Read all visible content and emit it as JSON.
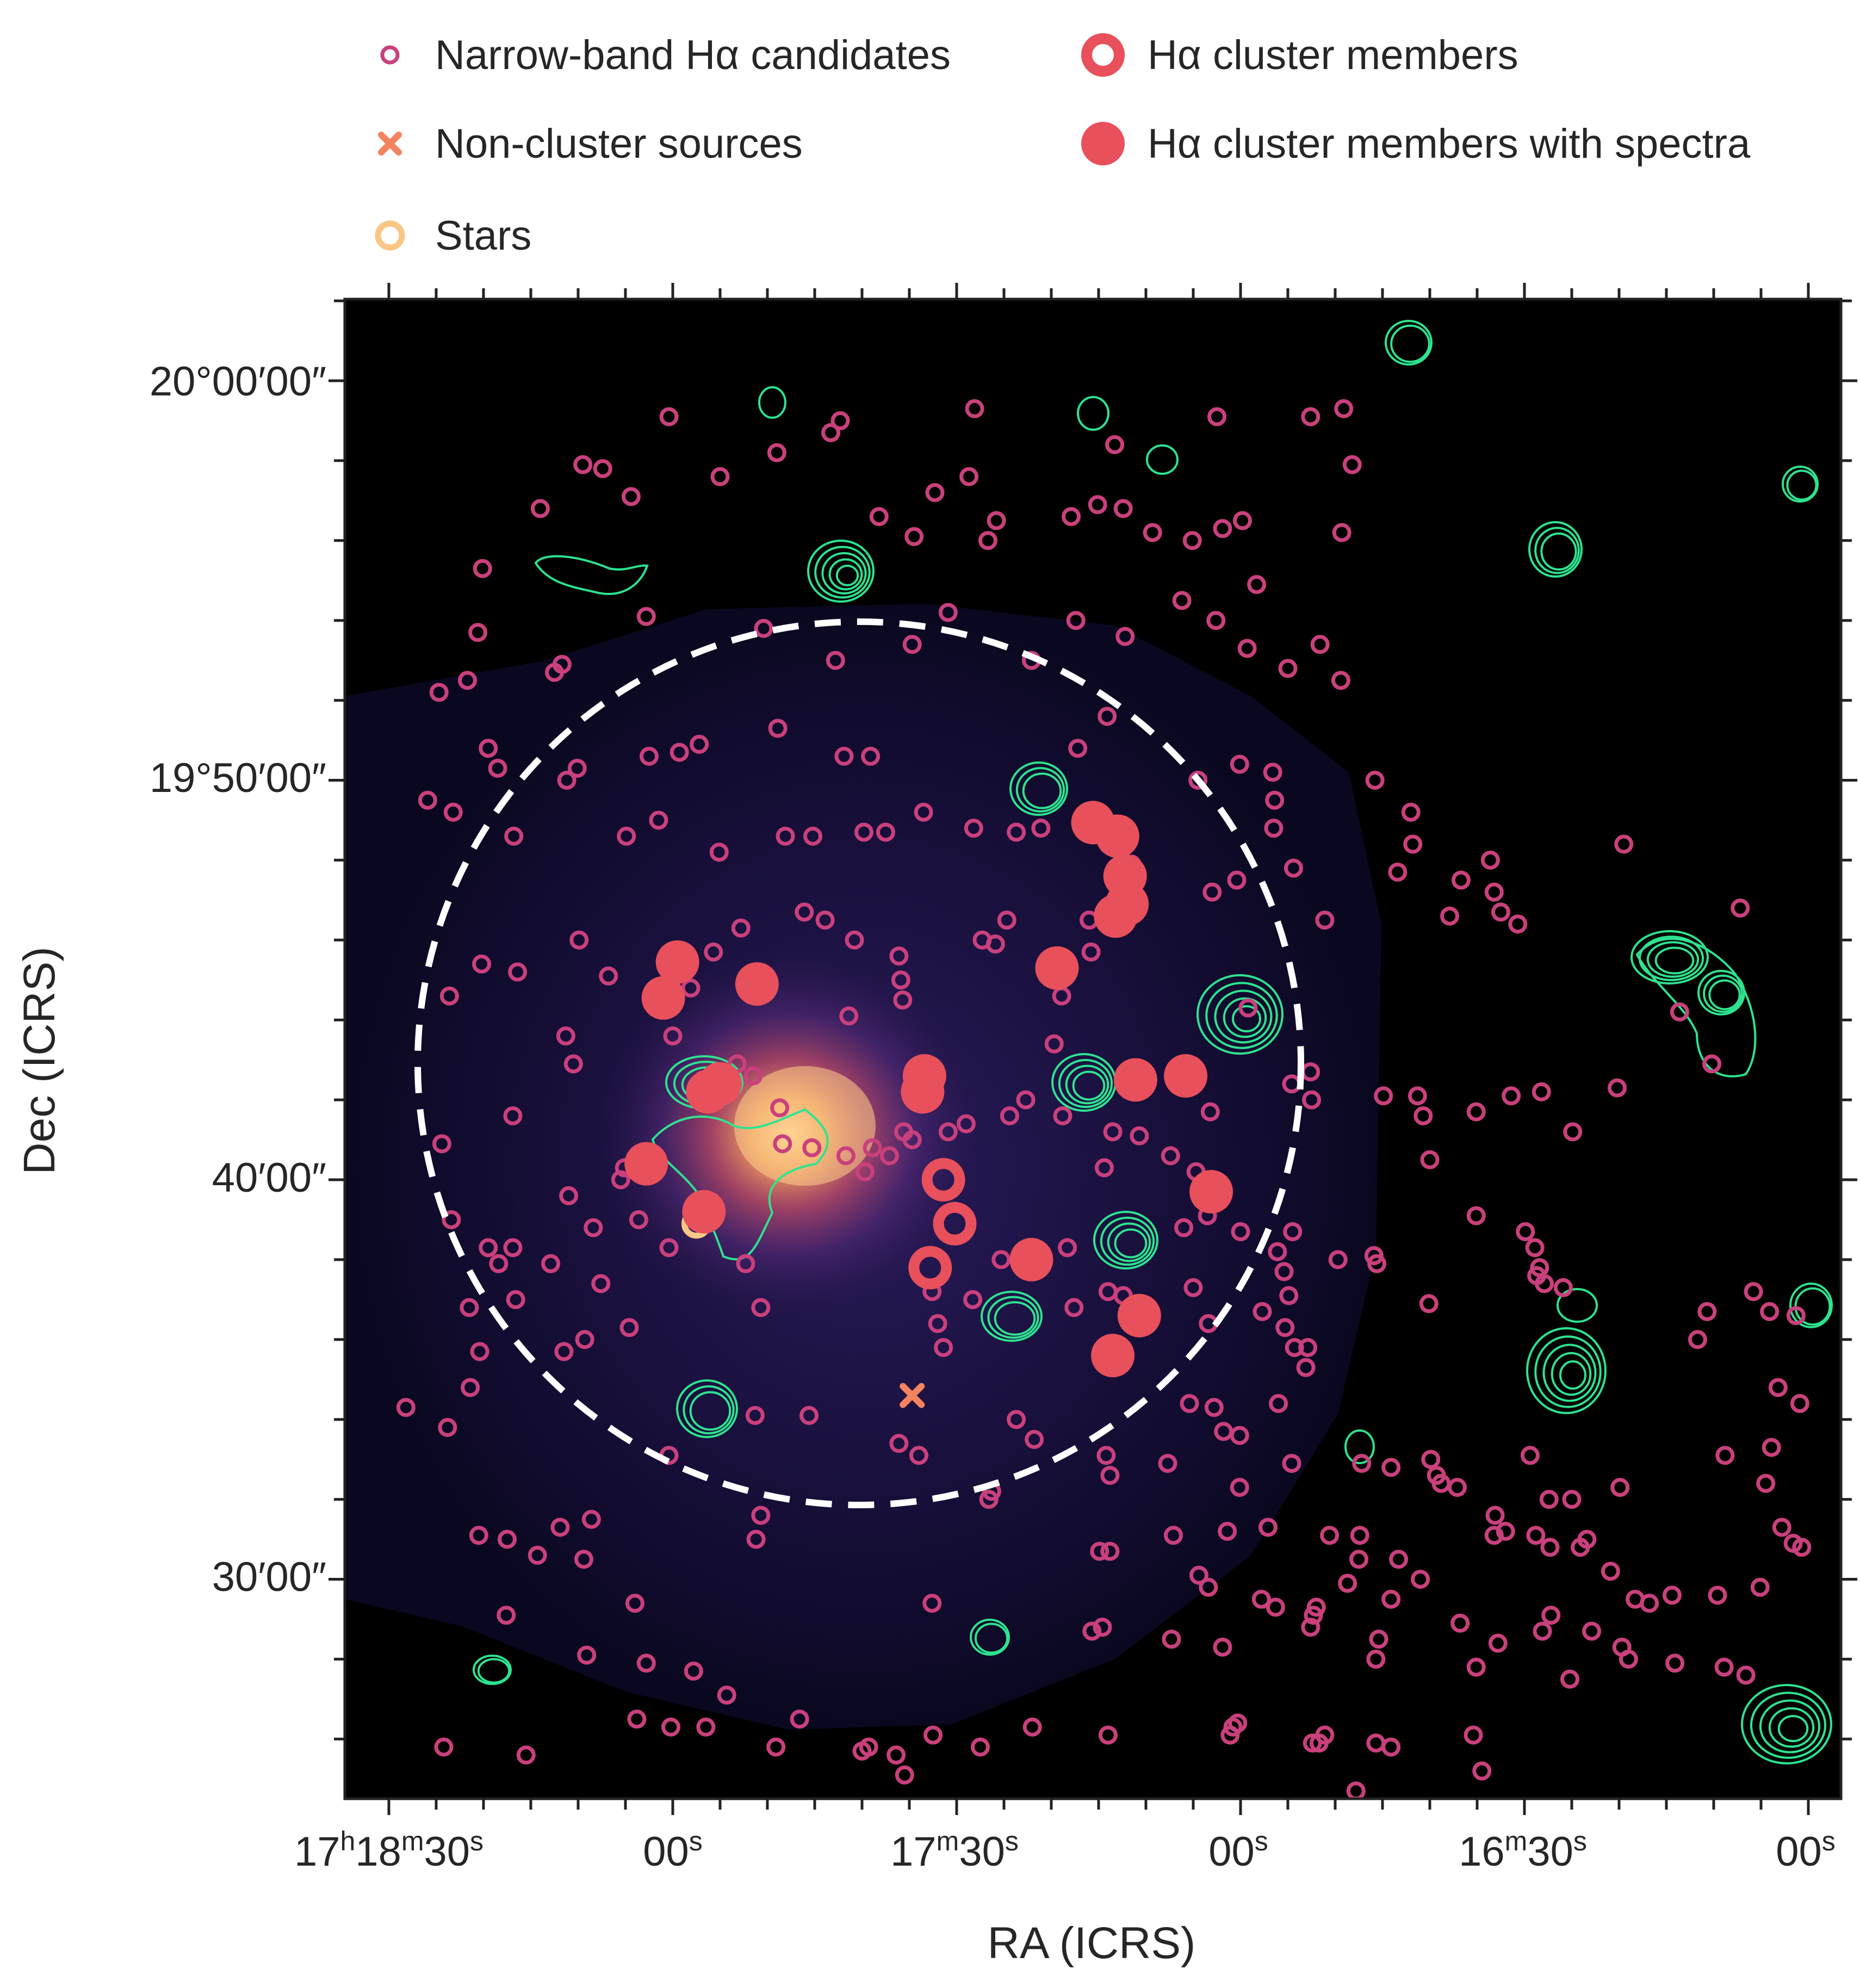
{
  "chart_data": {
    "type": "scatter",
    "xlabel": "RA (ICRS)",
    "ylabel": "Dec (ICRS)",
    "x_unit": "seconds of RA offset from 17h16m00s",
    "y_unit": "arcminutes of Dec offset from +19°",
    "xlim": [
      156,
      -7
    ],
    "ylim": [
      23.7,
      62
    ],
    "x_ticks": [
      {
        "value": 150,
        "label_main": "17",
        "sup1": "h",
        "mid": "18",
        "sup2": "m",
        "end": "30",
        "sup3": "s"
      },
      {
        "value": 120,
        "label_main": "00",
        "sup3": "s"
      },
      {
        "value": 90,
        "label_main": "17",
        "sup2": "m",
        "end": "30",
        "sup3": "s",
        "mid": ""
      },
      {
        "value": 60,
        "label_main": "00",
        "sup3": "s"
      },
      {
        "value": 30,
        "label_main": "16",
        "sup2": "m",
        "end": "30",
        "sup3": "s",
        "mid": ""
      },
      {
        "value": 0,
        "label_main": "00",
        "sup3": "s"
      }
    ],
    "x_tick_labels": [
      "17h18m30s",
      "00s",
      "17m30s",
      "00s",
      "16m30s",
      "00s"
    ],
    "y_tick_labels": [
      {
        "value": 60,
        "label": "20°00′00″"
      },
      {
        "value": 50,
        "label": "19°50′00″"
      },
      {
        "value": 40,
        "label": "40′00″"
      },
      {
        "value": 30,
        "label": "30′00″"
      }
    ],
    "legend": {
      "placement": "above plot",
      "entries": [
        {
          "label": "Narrow-band Hα candidates",
          "marker": "small-open-circle",
          "color": "#c9407c"
        },
        {
          "label": "Hα cluster members",
          "marker": "large-open-circle",
          "color": "#e8505b"
        },
        {
          "label": "Non-cluster sources",
          "marker": "x",
          "color": "#f4845f"
        },
        {
          "label": "Hα cluster members with spectra",
          "marker": "filled-circle",
          "color": "#e8505b"
        },
        {
          "label": "Stars",
          "marker": "open-circle",
          "color": "#f9c784"
        }
      ]
    },
    "region_circle": {
      "center_ra": 90.5,
      "center_dec": 42.9,
      "radius_dec_arcmin": 11.1,
      "style": "white dashed"
    },
    "cluster_members_with_spectra": [
      [
        119.5,
        45.45
      ],
      [
        121.0,
        44.55
      ],
      [
        111.1,
        44.9
      ],
      [
        75.6,
        48.94
      ],
      [
        73.0,
        48.6
      ],
      [
        72.2,
        47.6
      ],
      [
        72.0,
        46.9
      ],
      [
        73.2,
        46.6
      ],
      [
        79.4,
        45.3
      ],
      [
        71.1,
        42.5
      ],
      [
        65.8,
        42.6
      ],
      [
        93.4,
        42.6
      ],
      [
        93.6,
        42.2
      ],
      [
        115.0,
        42.4
      ],
      [
        116.3,
        42.2
      ],
      [
        122.8,
        40.4
      ],
      [
        116.7,
        39.2
      ],
      [
        63.1,
        39.7
      ],
      [
        82.1,
        38.0
      ],
      [
        70.7,
        36.6
      ],
      [
        73.5,
        35.6
      ]
    ],
    "cluster_members_open": [
      [
        91.4,
        40.0
      ],
      [
        90.2,
        38.9
      ],
      [
        92.8,
        37.8
      ]
    ],
    "non_cluster_sources": [
      [
        94.7,
        34.6
      ]
    ],
    "stars": [
      [
        117.5,
        38.9
      ]
    ],
    "halpha_candidates": [
      [
        120.4,
        59.1
      ],
      [
        109.0,
        58.2
      ],
      [
        103.3,
        58.7
      ],
      [
        102.3,
        59.0
      ],
      [
        88.1,
        59.3
      ],
      [
        73.3,
        58.4
      ],
      [
        62.5,
        59.1
      ],
      [
        52.6,
        59.1
      ],
      [
        49.1,
        59.3
      ],
      [
        48.2,
        57.9
      ],
      [
        129.5,
        57.9
      ],
      [
        127.4,
        57.8
      ],
      [
        124.4,
        57.1
      ],
      [
        134.0,
        56.8
      ],
      [
        115.0,
        57.6
      ],
      [
        98.2,
        56.6
      ],
      [
        94.5,
        56.1
      ],
      [
        92.3,
        57.2
      ],
      [
        88.7,
        57.6
      ],
      [
        86.7,
        56.0
      ],
      [
        85.8,
        56.5
      ],
      [
        77.9,
        56.6
      ],
      [
        75.1,
        56.9
      ],
      [
        72.4,
        56.8
      ],
      [
        69.3,
        56.2
      ],
      [
        65.1,
        56.0
      ],
      [
        61.9,
        56.3
      ],
      [
        59.8,
        56.5
      ],
      [
        49.3,
        56.2
      ],
      [
        58.3,
        54.9
      ],
      [
        140.1,
        55.3
      ],
      [
        140.6,
        53.7
      ],
      [
        131.7,
        52.9
      ],
      [
        122.8,
        54.1
      ],
      [
        110.4,
        53.8
      ],
      [
        102.8,
        53.0
      ],
      [
        94.7,
        53.4
      ],
      [
        90.9,
        54.2
      ],
      [
        82.1,
        53.0
      ],
      [
        77.4,
        54.0
      ],
      [
        72.2,
        53.6
      ],
      [
        66.2,
        54.5
      ],
      [
        62.6,
        54.0
      ],
      [
        59.3,
        53.3
      ],
      [
        55.0,
        52.8
      ],
      [
        51.6,
        53.4
      ],
      [
        49.4,
        52.5
      ],
      [
        141.7,
        52.5
      ],
      [
        144.7,
        52.2
      ],
      [
        132.5,
        52.7
      ],
      [
        139.5,
        50.8
      ],
      [
        138.5,
        50.3
      ],
      [
        131.2,
        50.0
      ],
      [
        130.1,
        50.3
      ],
      [
        122.5,
        50.6
      ],
      [
        119.3,
        50.7
      ],
      [
        117.2,
        50.9
      ],
      [
        108.9,
        51.3
      ],
      [
        101.9,
        50.6
      ],
      [
        99.1,
        50.6
      ],
      [
        77.2,
        50.8
      ],
      [
        74.1,
        51.6
      ],
      [
        64.5,
        50.0
      ],
      [
        60.1,
        50.4
      ],
      [
        56.6,
        50.2
      ],
      [
        56.4,
        49.5
      ],
      [
        56.5,
        48.8
      ],
      [
        45.8,
        50.0
      ],
      [
        42.0,
        49.2
      ],
      [
        41.8,
        48.4
      ],
      [
        145.9,
        49.5
      ],
      [
        143.2,
        49.2
      ],
      [
        136.8,
        48.6
      ],
      [
        124.9,
        48.6
      ],
      [
        121.5,
        49.0
      ],
      [
        115.1,
        48.2
      ],
      [
        108.1,
        48.6
      ],
      [
        105.2,
        48.6
      ],
      [
        99.8,
        48.7
      ],
      [
        97.5,
        48.7
      ],
      [
        93.5,
        49.2
      ],
      [
        88.2,
        48.8
      ],
      [
        83.7,
        48.7
      ],
      [
        81.1,
        48.8
      ],
      [
        71.5,
        47.9
      ],
      [
        63.0,
        47.2
      ],
      [
        60.4,
        47.5
      ],
      [
        54.4,
        47.8
      ],
      [
        51.1,
        46.5
      ],
      [
        43.4,
        47.7
      ],
      [
        36.7,
        47.5
      ],
      [
        33.6,
        48.0
      ],
      [
        33.2,
        47.2
      ],
      [
        32.5,
        46.7
      ],
      [
        30.7,
        46.4
      ],
      [
        19.5,
        48.4
      ],
      [
        7.2,
        46.8
      ],
      [
        37.9,
        46.6
      ],
      [
        59.2,
        44.3
      ],
      [
        76.0,
        46.5
      ],
      [
        75.8,
        45.7
      ],
      [
        78.9,
        44.6
      ],
      [
        79.7,
        43.4
      ],
      [
        84.7,
        46.5
      ],
      [
        85.9,
        45.9
      ],
      [
        87.3,
        46.0
      ],
      [
        95.9,
        45.0
      ],
      [
        100.8,
        46.0
      ],
      [
        106.1,
        46.7
      ],
      [
        115.7,
        45.7
      ],
      [
        129.9,
        46.0
      ],
      [
        140.2,
        45.4
      ],
      [
        136.4,
        45.2
      ],
      [
        126.8,
        45.1
      ],
      [
        118.1,
        44.8
      ],
      [
        101.4,
        44.1
      ],
      [
        96.1,
        45.6
      ],
      [
        95.7,
        44.5
      ],
      [
        112.8,
        46.3
      ],
      [
        103.9,
        46.5
      ],
      [
        143.6,
        44.6
      ],
      [
        130.5,
        42.9
      ],
      [
        131.3,
        43.6
      ],
      [
        120.0,
        43.6
      ],
      [
        116.8,
        42.5
      ],
      [
        115.5,
        42.6
      ],
      [
        113.2,
        42.9
      ],
      [
        111.5,
        42.6
      ],
      [
        108.7,
        41.8
      ],
      [
        108.4,
        40.9
      ],
      [
        105.3,
        40.8
      ],
      [
        101.7,
        40.6
      ],
      [
        98.9,
        40.8
      ],
      [
        97.1,
        40.6
      ],
      [
        95.6,
        41.2
      ],
      [
        94.7,
        41.0
      ],
      [
        93.9,
        42.0
      ],
      [
        90.9,
        41.2
      ],
      [
        89.0,
        41.4
      ],
      [
        84.4,
        41.6
      ],
      [
        82.7,
        42.0
      ],
      [
        78.8,
        41.6
      ],
      [
        73.5,
        41.2
      ],
      [
        70.7,
        41.1
      ],
      [
        63.2,
        41.7
      ],
      [
        67.4,
        40.6
      ],
      [
        64.7,
        40.2
      ],
      [
        54.6,
        42.4
      ],
      [
        52.6,
        42.7
      ],
      [
        52.5,
        42.0
      ],
      [
        44.9,
        42.1
      ],
      [
        41.3,
        42.1
      ],
      [
        40.7,
        41.6
      ],
      [
        35.1,
        41.7
      ],
      [
        31.4,
        42.1
      ],
      [
        28.2,
        42.2
      ],
      [
        24.9,
        41.2
      ],
      [
        20.2,
        42.3
      ],
      [
        10.2,
        42.9
      ],
      [
        13.6,
        44.2
      ],
      [
        144.4,
        40.9
      ],
      [
        136.9,
        41.6
      ],
      [
        143.4,
        39.0
      ],
      [
        131.0,
        39.6
      ],
      [
        125.1,
        40.3
      ],
      [
        125.5,
        40.0
      ],
      [
        99.7,
        40.2
      ],
      [
        74.4,
        40.3
      ],
      [
        66.0,
        38.8
      ],
      [
        63.5,
        39.1
      ],
      [
        60.0,
        38.7
      ],
      [
        56.1,
        38.2
      ],
      [
        55.4,
        37.7
      ],
      [
        54.5,
        38.7
      ],
      [
        45.9,
        38.1
      ],
      [
        49.7,
        38.0
      ],
      [
        45.6,
        37.9
      ],
      [
        29.9,
        38.7
      ],
      [
        28.9,
        38.3
      ],
      [
        40.0,
        40.5
      ],
      [
        35.1,
        39.1
      ],
      [
        28.4,
        37.8
      ],
      [
        28.7,
        37.6
      ],
      [
        27.9,
        37.4
      ],
      [
        25.9,
        37.3
      ],
      [
        139.5,
        38.3
      ],
      [
        138.4,
        37.9
      ],
      [
        136.9,
        38.3
      ],
      [
        132.9,
        37.9
      ],
      [
        128.4,
        38.8
      ],
      [
        127.6,
        37.4
      ],
      [
        123.6,
        39.0
      ],
      [
        120.4,
        38.3
      ],
      [
        112.3,
        37.9
      ],
      [
        110.7,
        36.8
      ],
      [
        92.6,
        37.2
      ],
      [
        91.4,
        35.8
      ],
      [
        92.0,
        36.4
      ],
      [
        88.3,
        37.0
      ],
      [
        85.3,
        38.0
      ],
      [
        81.4,
        38.0
      ],
      [
        78.3,
        38.3
      ],
      [
        77.6,
        36.8
      ],
      [
        74.0,
        37.2
      ],
      [
        72.4,
        37.1
      ],
      [
        65.0,
        37.3
      ],
      [
        63.4,
        36.4
      ],
      [
        54.9,
        37.1
      ],
      [
        55.3,
        36.3
      ],
      [
        54.3,
        35.8
      ],
      [
        52.9,
        35.8
      ],
      [
        53.1,
        35.3
      ],
      [
        57.7,
        36.7
      ],
      [
        40.1,
        36.9
      ],
      [
        11.7,
        36.0
      ],
      [
        10.7,
        36.7
      ],
      [
        5.8,
        37.2
      ],
      [
        4.1,
        36.7
      ],
      [
        1.3,
        36.6
      ],
      [
        136.6,
        37.0
      ],
      [
        124.6,
        36.3
      ],
      [
        129.3,
        36.0
      ],
      [
        141.5,
        36.8
      ],
      [
        131.5,
        35.7
      ],
      [
        140.4,
        35.7
      ],
      [
        141.4,
        34.8
      ],
      [
        148.2,
        34.3
      ],
      [
        143.8,
        33.8
      ],
      [
        120.4,
        33.1
      ],
      [
        111.3,
        34.1
      ],
      [
        105.6,
        34.1
      ],
      [
        96.1,
        33.4
      ],
      [
        94.0,
        33.1
      ],
      [
        83.7,
        34.0
      ],
      [
        81.8,
        33.5
      ],
      [
        65.4,
        34.4
      ],
      [
        62.8,
        34.3
      ],
      [
        60.1,
        33.6
      ],
      [
        61.8,
        33.7
      ],
      [
        56.0,
        34.4
      ],
      [
        54.6,
        32.9
      ],
      [
        39.3,
        32.6
      ],
      [
        38.8,
        32.4
      ],
      [
        37.1,
        32.3
      ],
      [
        27.4,
        32.0
      ],
      [
        33.2,
        31.1
      ],
      [
        0.9,
        34.4
      ],
      [
        3.2,
        34.8
      ],
      [
        3.9,
        33.3
      ],
      [
        4.5,
        32.4
      ],
      [
        74.2,
        33.1
      ],
      [
        73.8,
        32.6
      ],
      [
        67.7,
        32.9
      ],
      [
        60.1,
        32.3
      ],
      [
        57.1,
        31.3
      ],
      [
        47.2,
        32.9
      ],
      [
        44.1,
        32.8
      ],
      [
        39.9,
        33.0
      ],
      [
        29.4,
        33.1
      ],
      [
        25.0,
        32.0
      ],
      [
        19.9,
        32.3
      ],
      [
        8.8,
        33.1
      ],
      [
        2.8,
        31.3
      ],
      [
        137.5,
        31.0
      ],
      [
        134.3,
        30.6
      ],
      [
        129.4,
        30.5
      ],
      [
        128.6,
        31.5
      ],
      [
        140.5,
        31.1
      ],
      [
        131.9,
        31.3
      ],
      [
        110.7,
        31.6
      ],
      [
        111.2,
        31.0
      ],
      [
        86.3,
        32.2
      ],
      [
        86.6,
        32.0
      ],
      [
        74.9,
        30.7
      ],
      [
        73.8,
        30.7
      ],
      [
        67.1,
        31.1
      ],
      [
        61.4,
        31.2
      ],
      [
        50.6,
        31.1
      ],
      [
        47.4,
        31.1
      ],
      [
        47.5,
        30.5
      ],
      [
        43.3,
        30.5
      ],
      [
        27.3,
        30.8
      ],
      [
        28.8,
        31.1
      ],
      [
        33.1,
        31.6
      ],
      [
        32.0,
        31.2
      ],
      [
        23.4,
        31.0
      ],
      [
        24.1,
        30.8
      ],
      [
        20.9,
        30.2
      ],
      [
        18.3,
        29.5
      ],
      [
        16.8,
        29.4
      ],
      [
        1.6,
        30.9
      ],
      [
        0.7,
        30.8
      ],
      [
        5.1,
        29.8
      ],
      [
        9.6,
        29.6
      ],
      [
        14.4,
        29.6
      ],
      [
        27.2,
        29.1
      ],
      [
        28.1,
        28.7
      ],
      [
        32.8,
        28.4
      ],
      [
        63.4,
        29.8
      ],
      [
        64.4,
        30.1
      ],
      [
        57.8,
        29.5
      ],
      [
        48.7,
        29.9
      ],
      [
        44.1,
        29.5
      ],
      [
        41.0,
        30.0
      ],
      [
        52.0,
        29.3
      ],
      [
        52.6,
        28.8
      ],
      [
        45.4,
        28.5
      ],
      [
        45.7,
        28.0
      ],
      [
        36.8,
        28.9
      ],
      [
        35.1,
        27.8
      ],
      [
        22.9,
        28.7
      ],
      [
        19.7,
        28.3
      ],
      [
        19.0,
        28.0
      ],
      [
        25.2,
        27.5
      ],
      [
        14.1,
        27.9
      ],
      [
        8.9,
        27.8
      ],
      [
        6.6,
        27.6
      ],
      [
        92.6,
        29.4
      ],
      [
        75.7,
        28.7
      ],
      [
        74.6,
        28.8
      ],
      [
        67.3,
        28.5
      ],
      [
        61.9,
        28.3
      ],
      [
        56.3,
        29.3
      ],
      [
        52.3,
        29.1
      ],
      [
        137.6,
        29.1
      ],
      [
        129.1,
        28.1
      ],
      [
        124.0,
        29.4
      ],
      [
        122.8,
        27.9
      ],
      [
        123.8,
        26.5
      ],
      [
        117.8,
        27.7
      ],
      [
        114.3,
        27.1
      ],
      [
        109.1,
        25.8
      ],
      [
        99.3,
        25.8
      ],
      [
        100.0,
        25.7
      ],
      [
        87.5,
        25.8
      ],
      [
        82.0,
        26.3
      ],
      [
        92.5,
        26.1
      ],
      [
        74.0,
        26.1
      ],
      [
        61.1,
        26.1
      ],
      [
        60.8,
        26.3
      ],
      [
        60.3,
        26.4
      ],
      [
        52.4,
        25.9
      ],
      [
        51.1,
        26.1
      ],
      [
        51.7,
        25.9
      ],
      [
        45.7,
        25.9
      ],
      [
        44.1,
        25.8
      ],
      [
        47.8,
        24.7
      ],
      [
        34.5,
        25.2
      ],
      [
        35.4,
        26.1
      ],
      [
        144.2,
        25.8
      ],
      [
        135.5,
        25.6
      ],
      [
        120.2,
        26.3
      ],
      [
        116.5,
        26.3
      ],
      [
        106.6,
        26.5
      ],
      [
        96.4,
        25.6
      ],
      [
        95.5,
        25.1
      ]
    ]
  }
}
